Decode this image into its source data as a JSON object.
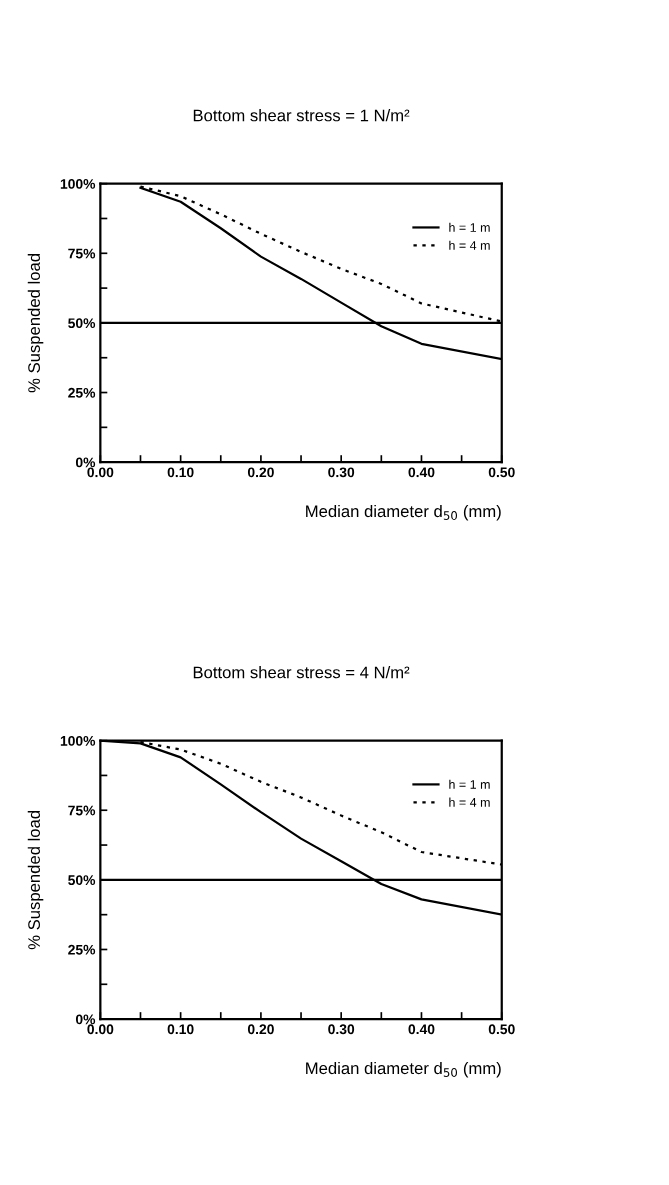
{
  "chart_data": [
    {
      "type": "line",
      "title": "Bottom shear stress = 1 N/m²",
      "xlabel": "Median diameter d$_{50}$ (mm)",
      "ylabel": "% Suspended load",
      "xlim": [
        0,
        0.5
      ],
      "ylim": [
        0,
        100
      ],
      "xticks": [
        {
          "value": 0,
          "label": "0.00"
        },
        {
          "value": 0.05,
          "label": null
        },
        {
          "value": 0.1,
          "label": "0.10"
        },
        {
          "value": 0.15,
          "label": null
        },
        {
          "value": 0.2,
          "label": "0.20"
        },
        {
          "value": 0.25,
          "label": null
        },
        {
          "value": 0.3,
          "label": "0.30"
        },
        {
          "value": 0.35,
          "label": null
        },
        {
          "value": 0.4,
          "label": "0.40"
        },
        {
          "value": 0.45,
          "label": null
        },
        {
          "value": 0.5,
          "label": "0.50"
        }
      ],
      "yticks": [
        {
          "value": 0,
          "label": "0%"
        },
        {
          "value": 12.5,
          "label": null
        },
        {
          "value": 25,
          "label": "25%"
        },
        {
          "value": 37.5,
          "label": null
        },
        {
          "value": 50,
          "label": "50%"
        },
        {
          "value": 62.5,
          "label": null
        },
        {
          "value": 75,
          "label": "75%"
        },
        {
          "value": 87.5,
          "label": null
        },
        {
          "value": 100,
          "label": "100%"
        }
      ],
      "x": [
        0.05,
        0.1,
        0.15,
        0.2,
        0.25,
        0.3,
        0.35,
        0.4,
        0.5
      ],
      "series": [
        {
          "name": "h = 1 m",
          "color": "#000000",
          "line_style": "solid",
          "values": [
            98.5,
            93.5,
            84,
            73.8,
            65.8,
            57.3,
            48.8,
            42.5,
            37
          ]
        },
        {
          "name": "h = 4 m",
          "color": "#000000",
          "line_style": "dotted",
          "values": [
            99,
            95.5,
            89,
            82,
            75.5,
            69.4,
            64,
            57,
            50.5
          ]
        }
      ],
      "ref_lines": [
        {
          "axis": "y",
          "value": 50,
          "color": "#000000"
        }
      ],
      "legend": "top right",
      "grid": false,
      "marker": "none"
    },
    {
      "type": "line",
      "title": "Bottom shear stress = 4 N/m²",
      "xlabel": "Median diameter d$_{50}$ (mm)",
      "ylabel": "% Suspended load",
      "xlim": [
        0,
        0.5
      ],
      "ylim": [
        0,
        100
      ],
      "xticks": [
        {
          "value": 0,
          "label": "0.00"
        },
        {
          "value": 0.05,
          "label": null
        },
        {
          "value": 0.1,
          "label": "0.10"
        },
        {
          "value": 0.15,
          "label": null
        },
        {
          "value": 0.2,
          "label": "0.20"
        },
        {
          "value": 0.25,
          "label": null
        },
        {
          "value": 0.3,
          "label": "0.30"
        },
        {
          "value": 0.35,
          "label": null
        },
        {
          "value": 0.4,
          "label": "0.40"
        },
        {
          "value": 0.45,
          "label": null
        },
        {
          "value": 0.5,
          "label": "0.50"
        }
      ],
      "yticks": [
        {
          "value": 0,
          "label": "0%"
        },
        {
          "value": 12.5,
          "label": null
        },
        {
          "value": 25,
          "label": "25%"
        },
        {
          "value": 37.5,
          "label": null
        },
        {
          "value": 50,
          "label": "50%"
        },
        {
          "value": 62.5,
          "label": null
        },
        {
          "value": 75,
          "label": "75%"
        },
        {
          "value": 87.5,
          "label": null
        },
        {
          "value": 100,
          "label": "100%"
        }
      ],
      "series": [
        {
          "name": "h = 1 m",
          "color": "#000000",
          "line_style": "solid",
          "x": [
            0,
            0.05,
            0.1,
            0.15,
            0.2,
            0.25,
            0.3,
            0.35,
            0.4,
            0.5
          ],
          "values": [
            100,
            99,
            94,
            84.3,
            74.3,
            64.8,
            56.7,
            48.5,
            43,
            37.5
          ]
        },
        {
          "name": "h = 4 m",
          "color": "#000000",
          "line_style": "dotted",
          "x": [
            0.05,
            0.1,
            0.15,
            0.2,
            0.25,
            0.3,
            0.35,
            0.4,
            0.5
          ],
          "values": [
            99.5,
            96.8,
            91.7,
            85.2,
            79.6,
            73.1,
            67.1,
            60,
            55.5
          ]
        }
      ],
      "ref_lines": [
        {
          "axis": "y",
          "value": 50,
          "color": "#000000"
        }
      ],
      "legend": "top right",
      "grid": false,
      "marker": "none"
    }
  ]
}
